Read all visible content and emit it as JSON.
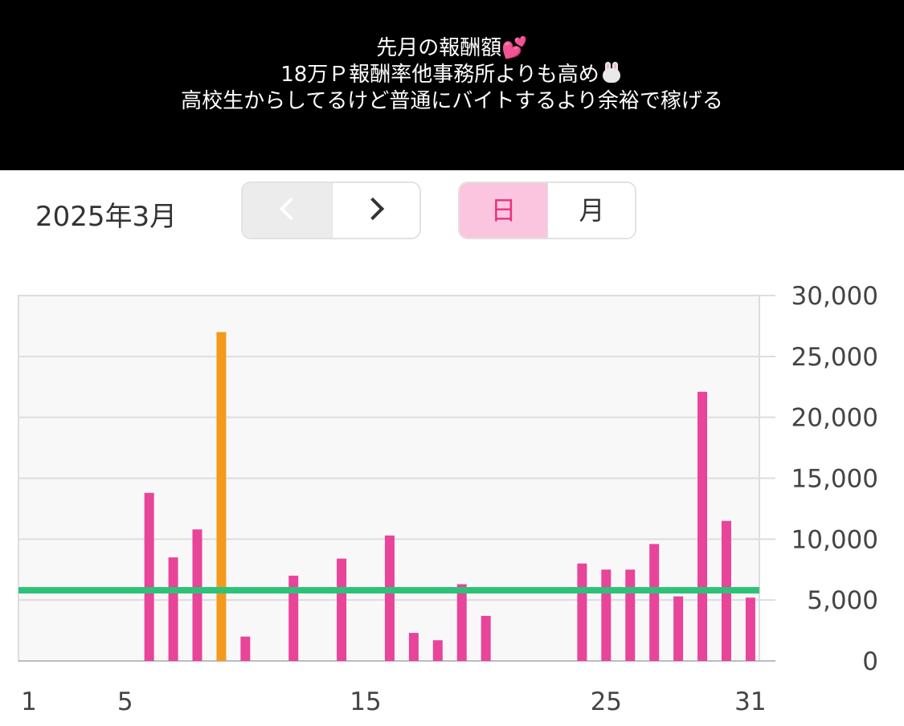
{
  "banner": {
    "line1": "先月の報酬額",
    "line1_emoji": "💕",
    "line2": "18万Ｐ報酬率他事務所よりも高め",
    "line2_emoji": "rabbit-face",
    "line3": "高校生からしてるけど普通にバイトするより余裕で稼げる"
  },
  "header": {
    "month_label": "2025年3月",
    "prev_icon": "chevron-left-icon",
    "next_icon": "chevron-right-icon",
    "toggle": {
      "day_label": "日",
      "month_label": "月",
      "selected": "日"
    }
  },
  "colors": {
    "bar": "#e8449a",
    "highlight_bar": "#f39a1d",
    "average_line": "#2ec278",
    "accent_pink": "#fbc4df"
  },
  "chart_data": {
    "type": "bar",
    "x": [
      1,
      2,
      3,
      4,
      5,
      6,
      7,
      8,
      9,
      10,
      11,
      12,
      13,
      14,
      15,
      16,
      17,
      18,
      19,
      20,
      21,
      22,
      23,
      24,
      25,
      26,
      27,
      28,
      29,
      30,
      31
    ],
    "values": [
      0,
      0,
      0,
      0,
      0,
      13800,
      8500,
      10800,
      27000,
      2000,
      0,
      7000,
      0,
      8400,
      0,
      10300,
      2300,
      1700,
      6300,
      3700,
      0,
      0,
      0,
      8000,
      7500,
      7500,
      9600,
      5300,
      22100,
      11500,
      5200
    ],
    "highlight_index": 8,
    "average_line": 5800,
    "xticks": [
      "1",
      "5",
      "15",
      "25",
      "31"
    ],
    "xtick_values": [
      1,
      5,
      15,
      25,
      31
    ],
    "ylim": [
      0,
      30000
    ],
    "yticks": [
      "0",
      "5,000",
      "10,000",
      "15,000",
      "20,000",
      "25,000",
      "30,000"
    ],
    "ytick_values": [
      0,
      5000,
      10000,
      15000,
      20000,
      25000,
      30000
    ],
    "y_axis_position": "right",
    "grid": true,
    "title": "",
    "xlabel": "",
    "ylabel": ""
  }
}
